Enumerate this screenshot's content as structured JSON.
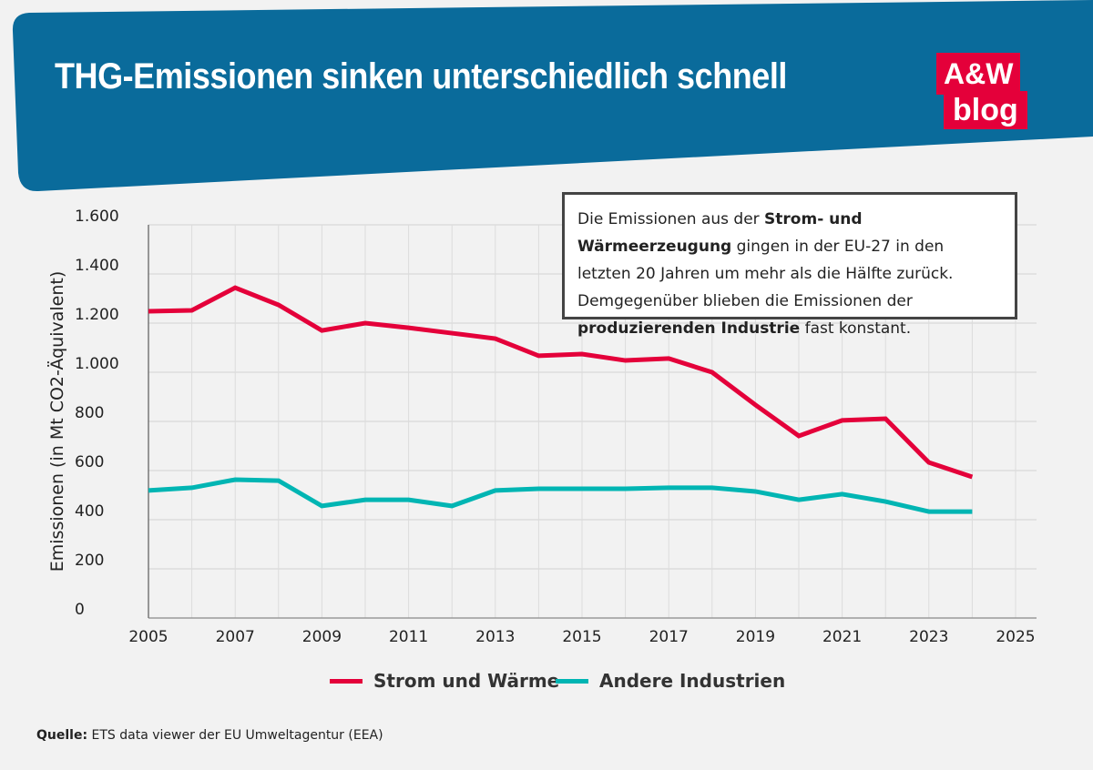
{
  "header": {
    "title": "THG-Emissionen sinken unterschiedlich schnell",
    "logo_line1": "A&W",
    "logo_line2": "blog"
  },
  "note": {
    "parts": [
      {
        "text": "Die Emissionen aus der ",
        "bold": false
      },
      {
        "text": "Strom- und Wärmeerzeugung",
        "bold": true
      },
      {
        "text": " gingen in der EU-27 in den letzten 20 Jahren um mehr als die Hälfte zurück. Demgegenüber blieben die Emissionen der ",
        "bold": false
      },
      {
        "text": "produzierenden Industrie",
        "bold": true
      },
      {
        "text": " fast konstant.",
        "bold": false
      }
    ]
  },
  "source": {
    "label": "Quelle:",
    "text": " ETS data viewer der EU Umweltagentur (EEA)"
  },
  "colors": {
    "banner": "#0a6b9b",
    "strom": "#e4003a",
    "industrie": "#00b5b3",
    "logo": "#e4003a"
  },
  "chart_data": {
    "type": "line",
    "title": "THG-Emissionen sinken unterschiedlich schnell",
    "xlabel": "",
    "ylabel": "Emissionen (in Mt CO2-Äquivalent)",
    "xlim": [
      2005,
      2025
    ],
    "ylim": [
      0,
      1600
    ],
    "x_ticks": [
      2005,
      2007,
      2009,
      2011,
      2013,
      2015,
      2017,
      2019,
      2021,
      2023,
      2025
    ],
    "x_tick_labels": [
      "2005",
      "2007",
      "2009",
      "2011",
      "2013",
      "2015",
      "2017",
      "2019",
      "2021",
      "2023",
      "2025"
    ],
    "y_ticks": [
      0,
      200,
      400,
      600,
      800,
      1000,
      1200,
      1400,
      1600
    ],
    "y_tick_labels": [
      "0",
      "200",
      "400",
      "600",
      "800",
      "1.000",
      "1.200",
      "1.400",
      "1.600"
    ],
    "grid": true,
    "legend_placement": "bottom",
    "x": [
      2005,
      2006,
      2007,
      2008,
      2009,
      2010,
      2011,
      2012,
      2013,
      2014,
      2015,
      2016,
      2017,
      2018,
      2019,
      2020,
      2021,
      2022,
      2023,
      2024
    ],
    "series": [
      {
        "name": "Strom und Wärme",
        "color": "#e4003a",
        "values": [
          1248,
          1252,
          1344,
          1274,
          1170,
          1200,
          1181,
          1159,
          1137,
          1067,
          1074,
          1048,
          1056,
          1000,
          867,
          741,
          804,
          811,
          633,
          574
        ]
      },
      {
        "name": "Andere Industrien",
        "color": "#00b5b3",
        "values": [
          519,
          530,
          563,
          559,
          456,
          481,
          481,
          456,
          519,
          526,
          526,
          526,
          530,
          530,
          515,
          481,
          504,
          474,
          433,
          433
        ]
      }
    ]
  }
}
